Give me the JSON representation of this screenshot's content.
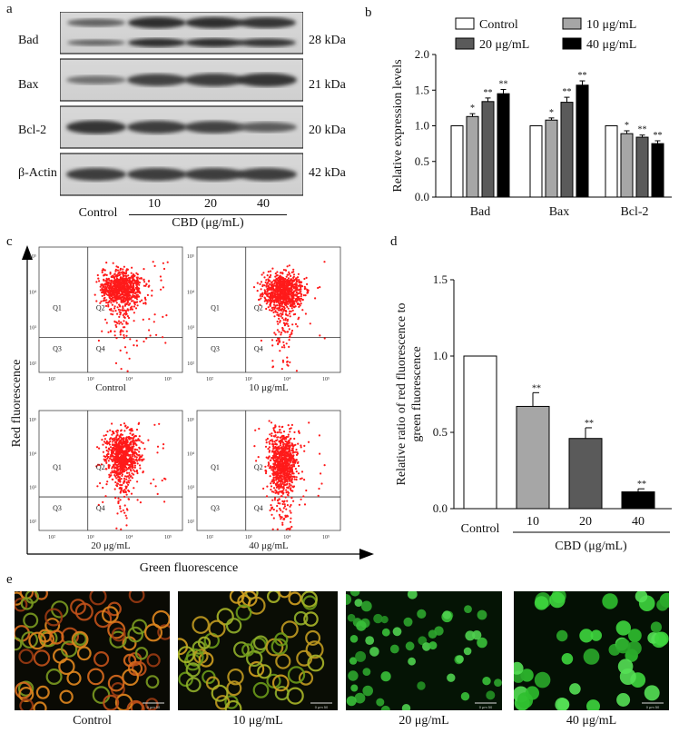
{
  "panels": {
    "a": "a",
    "b": "b",
    "c": "c",
    "d": "d",
    "e": "e"
  },
  "western_blot": {
    "rows": [
      {
        "name": "Bad",
        "kda": "28 kDa",
        "intensity": [
          0.55,
          0.95,
          0.95,
          0.9
        ],
        "double": true
      },
      {
        "name": "Bax",
        "kda": "21 kDa",
        "intensity": [
          0.45,
          0.8,
          0.85,
          0.9
        ],
        "double": false
      },
      {
        "name": "Bcl-2",
        "kda": "20 kDa",
        "intensity": [
          0.9,
          0.85,
          0.8,
          0.6
        ],
        "double": false
      },
      {
        "name": "β-Actin",
        "kda": "42 kDa",
        "intensity": [
          0.85,
          0.85,
          0.85,
          0.85
        ],
        "double": false
      }
    ],
    "lane_labels": [
      "Control",
      "10",
      "20",
      "40"
    ],
    "treatment_label": "CBD (μg/mL)"
  },
  "chart_data": [
    {
      "type": "bar",
      "panel": "b",
      "ylabel": "Relative expression levels",
      "categories": [
        "Bad",
        "Bax",
        "Bcl-2"
      ],
      "ylim": [
        0,
        2.0
      ],
      "yticks": [
        "0.0",
        "0.5",
        "1.0",
        "1.5",
        "2.0"
      ],
      "series": [
        {
          "name": "Control",
          "color": "#ffffff",
          "values": [
            1.0,
            1.0,
            1.0
          ],
          "errors": [
            0,
            0,
            0
          ],
          "marks": [
            "",
            "",
            ""
          ]
        },
        {
          "name": "10 μg/mL",
          "color": "#a6a6a6",
          "values": [
            1.13,
            1.08,
            0.89
          ],
          "errors": [
            0.04,
            0.03,
            0.04
          ],
          "marks": [
            "*",
            "*",
            "*"
          ]
        },
        {
          "name": "20 μg/mL",
          "color": "#5a5a5a",
          "values": [
            1.34,
            1.33,
            0.84
          ],
          "errors": [
            0.05,
            0.07,
            0.03
          ],
          "marks": [
            "**",
            "**",
            "**"
          ]
        },
        {
          "name": "40 μg/mL",
          "color": "#000000",
          "values": [
            1.45,
            1.57,
            0.75
          ],
          "errors": [
            0.06,
            0.06,
            0.04
          ],
          "marks": [
            "**",
            "**",
            "**"
          ]
        }
      ]
    },
    {
      "type": "bar",
      "panel": "d",
      "ylabel": "Relative ratio of red fluorescence to green fluorescence",
      "ylabel_lines": [
        "Relative ratio of red fluorescence to",
        "green fluorescence"
      ],
      "categories": [
        "Control",
        "10",
        "20",
        "40"
      ],
      "xlabel": "CBD (μg/mL)",
      "values": [
        1.0,
        0.67,
        0.46,
        0.11
      ],
      "errors": [
        0,
        0.09,
        0.07,
        0.02
      ],
      "marks": [
        "",
        "**",
        "**",
        "**"
      ],
      "colors": [
        "#ffffff",
        "#a6a6a6",
        "#5a5a5a",
        "#000000"
      ],
      "ylim": [
        0,
        1.5
      ],
      "yticks": [
        "0.0",
        "0.5",
        "1.0",
        "1.5"
      ]
    },
    {
      "type": "scatter",
      "panel": "c",
      "xlabel": "Green fluorescence",
      "ylabel": "Red fluorescence",
      "quadrants": [
        "Q1",
        "Q2",
        "Q3",
        "Q4"
      ],
      "subplots": [
        {
          "caption": "Control"
        },
        {
          "caption": "10 μg/mL"
        },
        {
          "caption": "20 μg/mL"
        },
        {
          "caption": "40 μg/mL"
        }
      ]
    }
  ],
  "microscopy": {
    "images": [
      {
        "caption": "Control",
        "tint": "red-orange"
      },
      {
        "caption": "10 μg/mL",
        "tint": "yellow-green"
      },
      {
        "caption": "20 μg/mL",
        "tint": "green"
      },
      {
        "caption": "40 μg/mL",
        "tint": "green"
      }
    ],
    "scale_text": "0    μm    50"
  }
}
